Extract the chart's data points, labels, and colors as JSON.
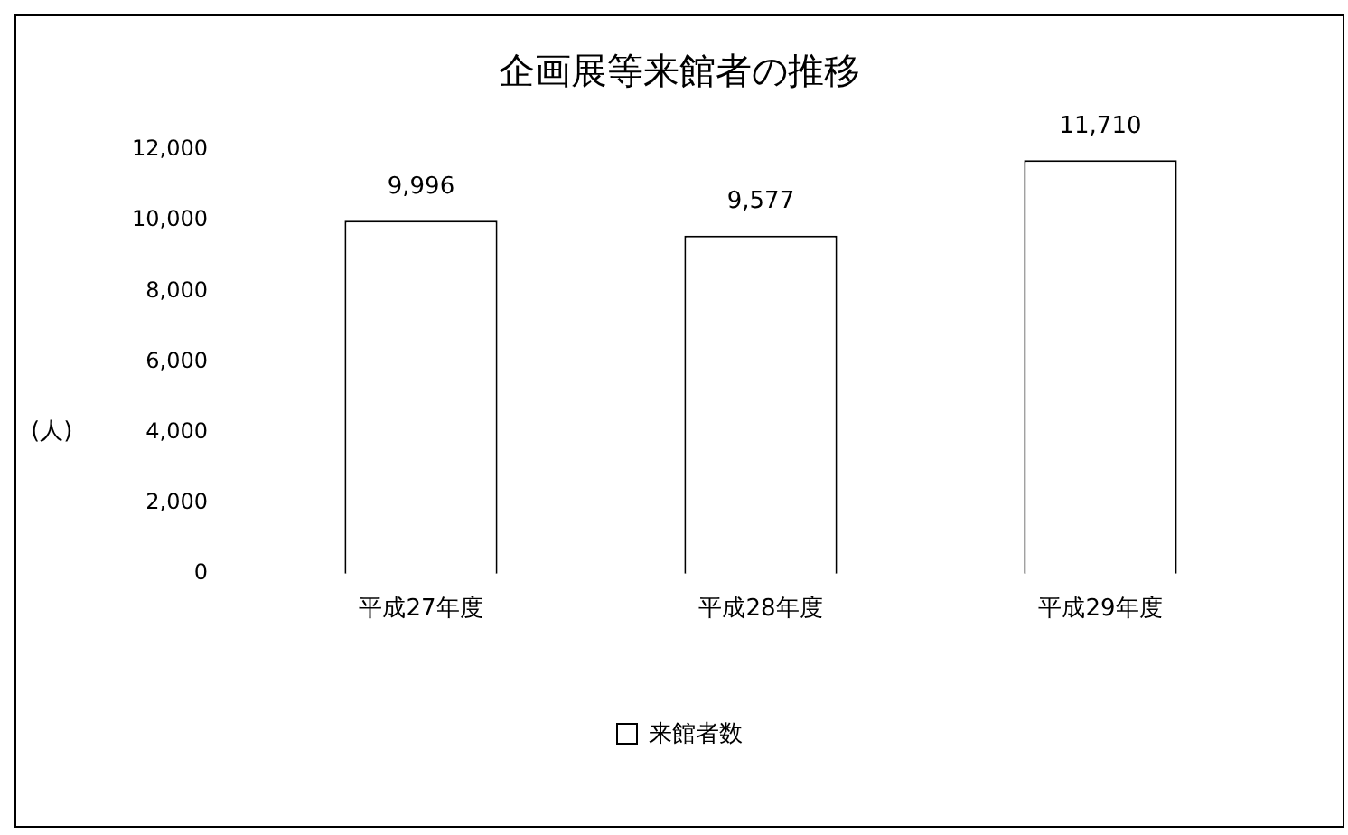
{
  "chart_data": {
    "type": "bar",
    "title": "企画展等来館者の推移",
    "ylabel": "(人)",
    "categories": [
      "平成27年度",
      "平成28年度",
      "平成29年度"
    ],
    "series": [
      {
        "name": "来館者数",
        "color": "#ffffff",
        "values": [
          9996,
          9577,
          11710
        ],
        "value_labels": [
          "9,996",
          "9,577",
          "11,710"
        ]
      }
    ],
    "ylim": [
      0,
      12000
    ],
    "yticks": [
      0,
      {
        "value": 2000,
        "label": "2,000"
      },
      {
        "value": 4000,
        "label": "4,000"
      },
      {
        "value": 6000,
        "label": "6,000"
      },
      {
        "value": 8000,
        "label": "8,000"
      },
      {
        "value": 10000,
        "label": "10,000"
      },
      {
        "value": 12000,
        "label": "12,000"
      }
    ],
    "grid": false,
    "legend": "bottom"
  }
}
